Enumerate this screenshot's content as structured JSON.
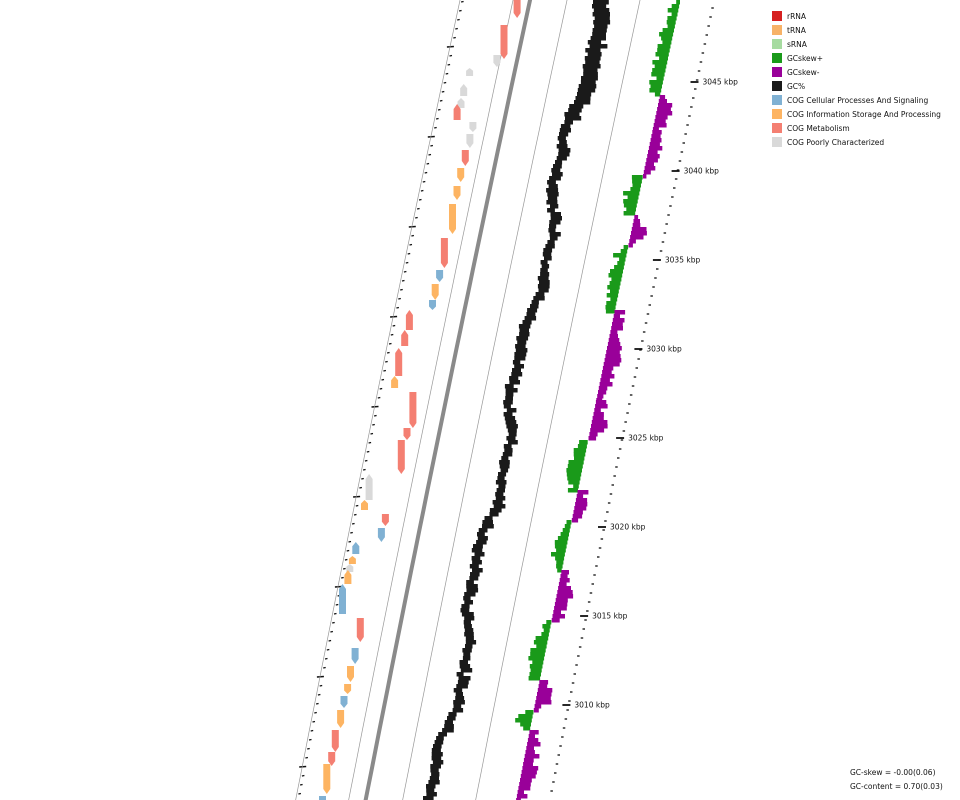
{
  "legend": [
    {
      "label": "rRNA",
      "color": "#d62020"
    },
    {
      "label": "tRNA",
      "color": "#f7b267"
    },
    {
      "label": "sRNA",
      "color": "#a6dba0"
    },
    {
      "label": "GCskew+",
      "color": "#1a9a1a"
    },
    {
      "label": "GCskew-",
      "color": "#990099"
    },
    {
      "label": "GC%",
      "color": "#1a1a1a"
    },
    {
      "label": "COG Cellular Processes And Signaling",
      "color": "#80b1d3"
    },
    {
      "label": "COG Information Storage And Processing",
      "color": "#fdb462"
    },
    {
      "label": "COG Metabolism",
      "color": "#f47f72"
    },
    {
      "label": "COG Poorly Characterized",
      "color": "#d9d9d9"
    }
  ],
  "ticks": [
    {
      "label": "3045 kbp",
      "pos": 3045
    },
    {
      "label": "3040 kbp",
      "pos": 3040
    },
    {
      "label": "3035 kbp",
      "pos": 3035
    },
    {
      "label": "3030 kbp",
      "pos": 3030
    },
    {
      "label": "3025 kbp",
      "pos": 3025
    },
    {
      "label": "3020 kbp",
      "pos": 3020
    },
    {
      "label": "3015 kbp",
      "pos": 3015
    },
    {
      "label": "3010 kbp",
      "pos": 3010
    }
  ],
  "stats": {
    "gc_skew": "GC-skew = -0.00(0.06)",
    "gc_content": "GC-content = 0.70(0.03)"
  }
}
